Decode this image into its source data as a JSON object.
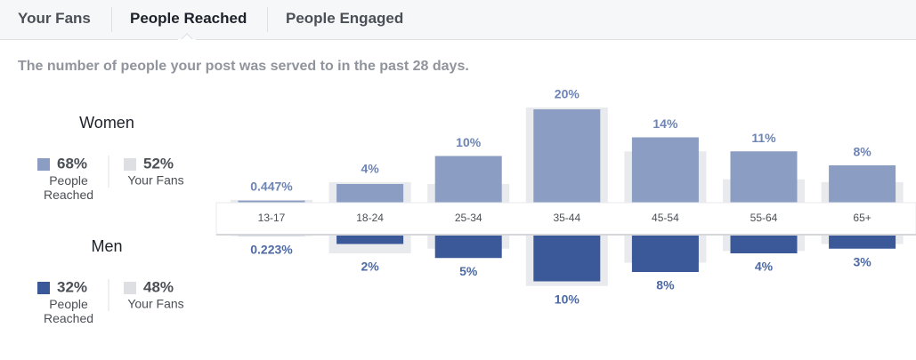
{
  "tabs": [
    "Your Fans",
    "People Reached",
    "People Engaged"
  ],
  "chart_data": {
    "type": "butterfly-bar",
    "subtitle": "The number of people your post was served to in the past 28 days.",
    "categories": [
      "13-17",
      "18-24",
      "25-34",
      "35-44",
      "45-54",
      "55-64",
      "65+"
    ],
    "ylim": [
      0,
      20
    ],
    "groups": [
      {
        "name": "Women",
        "series": [
          {
            "name": "People Reached",
            "color": "#8b9dc3",
            "share": 68,
            "share_label": "68%",
            "values": [
              0.447,
              4,
              10,
              20,
              14,
              11,
              8
            ],
            "value_labels": [
              "0.447%",
              "4%",
              "10%",
              "20%",
              "14%",
              "11%",
              "8%"
            ]
          },
          {
            "name": "Your Fans",
            "color": "#e9eaed",
            "share": 52,
            "share_label": "52%",
            "values": [
              0.6,
              4.4,
              4,
              20.4,
              11,
              5,
              4.4
            ]
          }
        ]
      },
      {
        "name": "Men",
        "series": [
          {
            "name": "People Reached",
            "color": "#3b5998",
            "share": 32,
            "share_label": "32%",
            "values": [
              0.223,
              2,
              5,
              10,
              8,
              4,
              3
            ],
            "value_labels": [
              "0.223%",
              "2%",
              "5%",
              "10%",
              "8%",
              "4%",
              "3%"
            ]
          },
          {
            "name": "Your Fans",
            "color": "#e9eaed",
            "share": 48,
            "share_label": "48%",
            "values": [
              0.3,
              4,
              3,
              11,
              6,
              3.5,
              2
            ]
          }
        ]
      }
    ]
  }
}
